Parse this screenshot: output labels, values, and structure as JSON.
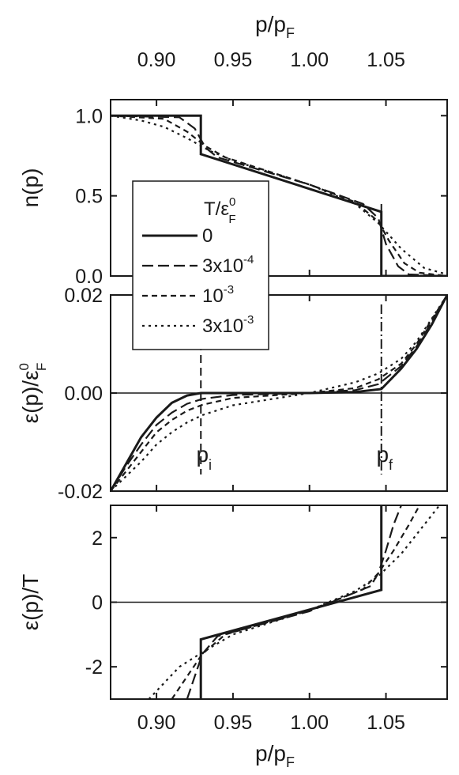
{
  "chart_data": [
    {
      "type": "line",
      "id": "occupation",
      "xlabel_top": "p/p",
      "xlabel_top_sub": "F",
      "x_ticks": [
        "0.90",
        "0.95",
        "1.00",
        "1.05"
      ],
      "xlim": [
        0.87,
        1.09
      ],
      "ylabel": "n(p)",
      "ylim": [
        0.0,
        1.1
      ],
      "y_ticks": [
        "0.0",
        "0.5",
        "1.0"
      ],
      "legend": {
        "title": "T/ε",
        "title_sup": "0",
        "title_sub": "F",
        "placement": "left-middle",
        "entries": [
          {
            "label": "0",
            "sup": "",
            "style": "solid"
          },
          {
            "label": "3x10",
            "sup": "-4",
            "style": "dash"
          },
          {
            "label": "10",
            "sup": "-3",
            "style": "shortdash"
          },
          {
            "label": "3x10",
            "sup": "-3",
            "style": "dot"
          }
        ]
      },
      "series": [
        {
          "style": "solid",
          "x": [
            0.87,
            0.929,
            0.929,
            1.047,
            1.047,
            1.09
          ],
          "y": [
            1.0,
            1.0,
            0.76,
            0.4,
            0.0,
            0.0
          ]
        },
        {
          "style": "dash",
          "x": [
            0.87,
            0.915,
            0.925,
            0.932,
            0.94,
            1.0,
            1.035,
            1.045,
            1.05,
            1.058,
            1.065,
            1.09
          ],
          "y": [
            1.0,
            0.99,
            0.92,
            0.8,
            0.74,
            0.57,
            0.45,
            0.36,
            0.2,
            0.06,
            0.01,
            0.0
          ]
        },
        {
          "style": "shortdash",
          "x": [
            0.87,
            0.905,
            0.92,
            0.932,
            0.945,
            1.0,
            1.03,
            1.045,
            1.052,
            1.062,
            1.072,
            1.09
          ],
          "y": [
            1.0,
            0.98,
            0.9,
            0.81,
            0.74,
            0.57,
            0.46,
            0.34,
            0.22,
            0.08,
            0.02,
            0.0
          ]
        },
        {
          "style": "dot",
          "x": [
            0.87,
            0.89,
            0.905,
            0.92,
            0.935,
            0.95,
            1.0,
            1.03,
            1.045,
            1.06,
            1.075,
            1.09
          ],
          "y": [
            1.0,
            0.97,
            0.93,
            0.86,
            0.78,
            0.72,
            0.57,
            0.45,
            0.33,
            0.17,
            0.05,
            0.01
          ]
        }
      ]
    },
    {
      "type": "line",
      "id": "spectrum",
      "ylabel": "ε(p)/ε",
      "ylabel_sup": "0",
      "ylabel_sub": "F",
      "ylim": [
        -0.02,
        0.02
      ],
      "y_ticks": [
        "-0.02",
        "0.00",
        "0.02"
      ],
      "xlim": [
        0.87,
        1.09
      ],
      "annotations": [
        {
          "text": "p",
          "sub": "i",
          "x": 0.929
        },
        {
          "text": "p",
          "sub": "f",
          "x": 1.047
        }
      ],
      "vlines": [
        0.929,
        1.047
      ],
      "series": [
        {
          "style": "solid",
          "x": [
            0.87,
            0.88,
            0.89,
            0.9,
            0.91,
            0.92,
            0.929,
            0.96,
            1.0,
            1.03,
            1.047,
            1.06,
            1.07,
            1.08,
            1.09
          ],
          "y": [
            -0.02,
            -0.0145,
            -0.009,
            -0.005,
            -0.002,
            -0.0005,
            0.0,
            0.0,
            0.0,
            0.0002,
            0.0008,
            0.005,
            0.009,
            0.014,
            0.02
          ]
        },
        {
          "style": "dash",
          "x": [
            0.87,
            0.88,
            0.89,
            0.9,
            0.91,
            0.92,
            0.93,
            0.95,
            1.0,
            1.03,
            1.045,
            1.06,
            1.07,
            1.08,
            1.09
          ],
          "y": [
            -0.02,
            -0.015,
            -0.0105,
            -0.0065,
            -0.004,
            -0.0022,
            -0.0012,
            -0.0004,
            0.0,
            0.0006,
            0.0018,
            0.0055,
            0.0095,
            0.0145,
            0.02
          ]
        },
        {
          "style": "shortdash",
          "x": [
            0.87,
            0.88,
            0.89,
            0.9,
            0.91,
            0.92,
            0.93,
            0.95,
            1.0,
            1.03,
            1.045,
            1.06,
            1.07,
            1.08,
            1.09
          ],
          "y": [
            -0.02,
            -0.016,
            -0.012,
            -0.008,
            -0.0055,
            -0.0036,
            -0.0024,
            -0.001,
            0.0,
            0.001,
            0.0028,
            0.006,
            0.01,
            0.015,
            0.02
          ]
        },
        {
          "style": "dot",
          "x": [
            0.87,
            0.88,
            0.89,
            0.9,
            0.91,
            0.92,
            0.93,
            0.95,
            1.0,
            1.03,
            1.045,
            1.06,
            1.07,
            1.08,
            1.09
          ],
          "y": [
            -0.02,
            -0.017,
            -0.014,
            -0.0105,
            -0.008,
            -0.006,
            -0.0045,
            -0.0025,
            0.0,
            0.0022,
            0.004,
            0.007,
            0.0105,
            0.0152,
            0.02
          ]
        }
      ]
    },
    {
      "type": "line",
      "id": "scaled",
      "xlabel": "p/p",
      "xlabel_sub": "F",
      "x_ticks": [
        "0.90",
        "0.95",
        "1.00",
        "1.05"
      ],
      "xlim": [
        0.87,
        1.09
      ],
      "ylabel": "ε(p)/T",
      "ylim": [
        -3.0,
        3.0
      ],
      "y_ticks": [
        "-2",
        "0",
        "2"
      ],
      "series": [
        {
          "style": "solid",
          "x": [
            0.929,
            0.929,
            1.047,
            1.047
          ],
          "y": [
            -3.0,
            -1.15,
            0.38,
            3.0
          ]
        },
        {
          "style": "dash",
          "x": [
            0.92,
            0.925,
            0.93,
            0.94,
            1.0,
            1.04,
            1.045,
            1.05,
            1.055,
            1.06
          ],
          "y": [
            -3.0,
            -2.3,
            -1.6,
            -1.05,
            -0.28,
            0.5,
            0.9,
            1.6,
            2.4,
            3.0
          ]
        },
        {
          "style": "shortdash",
          "x": [
            0.91,
            0.92,
            0.93,
            0.945,
            1.0,
            1.035,
            1.045,
            1.055,
            1.065,
            1.072
          ],
          "y": [
            -3.0,
            -2.3,
            -1.6,
            -1.0,
            -0.25,
            0.4,
            0.9,
            1.6,
            2.4,
            3.0
          ]
        },
        {
          "style": "dot",
          "x": [
            0.895,
            0.905,
            0.915,
            0.93,
            0.95,
            1.0,
            1.03,
            1.045,
            1.06,
            1.075,
            1.085
          ],
          "y": [
            -3.0,
            -2.5,
            -2.0,
            -1.55,
            -1.0,
            -0.25,
            0.35,
            0.8,
            1.5,
            2.4,
            3.0
          ]
        }
      ]
    }
  ]
}
